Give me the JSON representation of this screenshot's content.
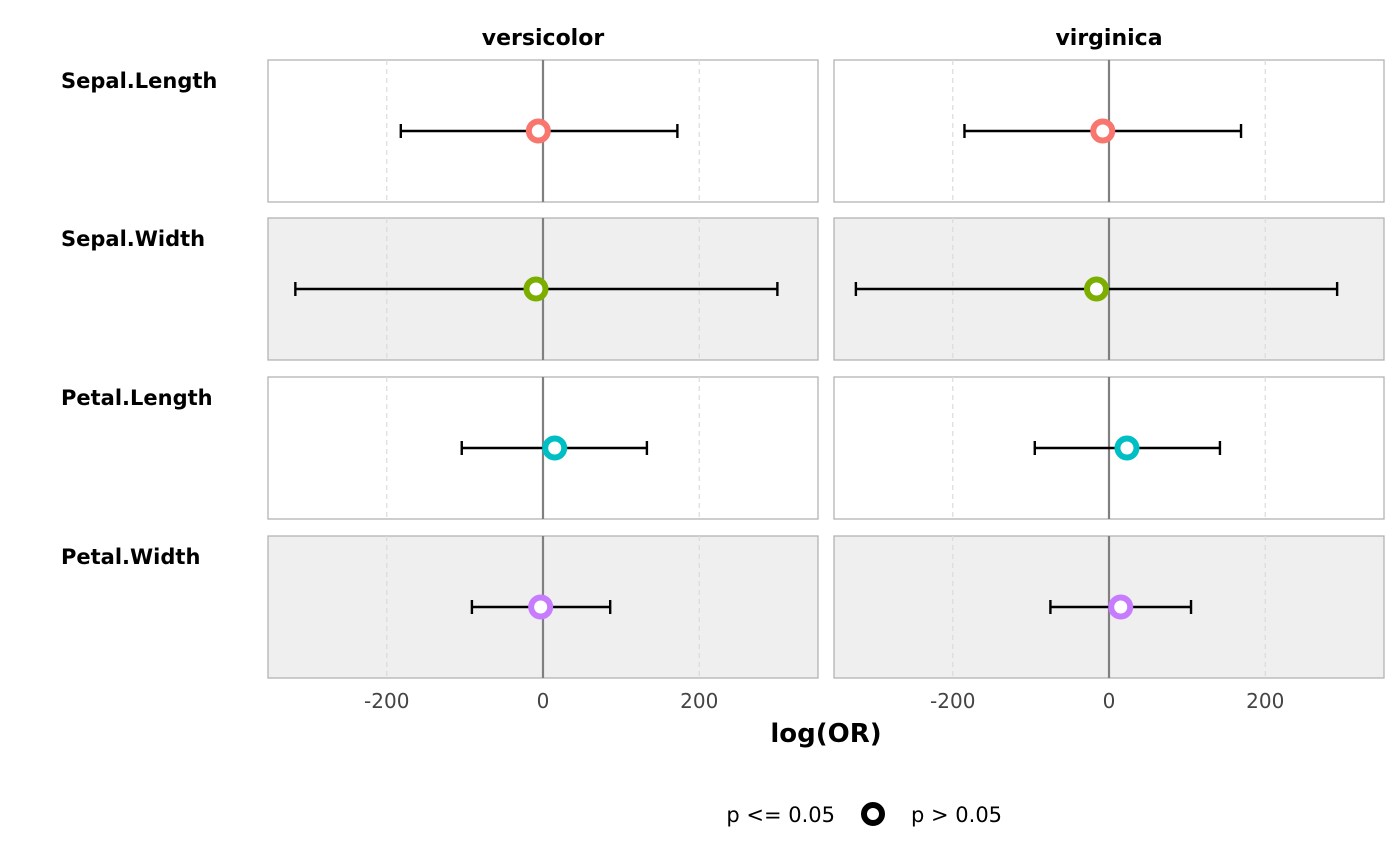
{
  "chart_data": {
    "type": "forest",
    "xlabel": "log(OR)",
    "xlim": [
      -352,
      352
    ],
    "xticks": [
      -200,
      0,
      200
    ],
    "xtick_labels": [
      "-200",
      "0",
      "200"
    ],
    "reference_line": 0,
    "grid": "vertical dashed",
    "legend_position": "bottom",
    "legend": [
      {
        "label": "p <= 0.05",
        "marker": "none"
      },
      {
        "label": "p > 0.05",
        "marker": "hollow-circle"
      }
    ],
    "facets": [
      "versicolor",
      "virginica"
    ],
    "rows": [
      {
        "label": "Sepal.Length",
        "color": "#F8766D",
        "background": "#ffffff"
      },
      {
        "label": "Sepal.Width",
        "color": "#7CAE00",
        "background": "#efefef"
      },
      {
        "label": "Petal.Length",
        "color": "#00BFC4",
        "background": "#ffffff"
      },
      {
        "label": "Petal.Width",
        "color": "#C77CFF",
        "background": "#efefef"
      }
    ],
    "estimates": {
      "versicolor": [
        {
          "term": "Sepal.Length",
          "estimate": -6,
          "low": -182,
          "high": 172,
          "p_gt_005": true
        },
        {
          "term": "Sepal.Width",
          "estimate": -9,
          "low": -317,
          "high": 300,
          "p_gt_005": true
        },
        {
          "term": "Petal.Length",
          "estimate": 15,
          "low": -104,
          "high": 133,
          "p_gt_005": true
        },
        {
          "term": "Petal.Width",
          "estimate": -3,
          "low": -91,
          "high": 86,
          "p_gt_005": true
        }
      ],
      "virginica": [
        {
          "term": "Sepal.Length",
          "estimate": -8,
          "low": -185,
          "high": 169,
          "p_gt_005": true
        },
        {
          "term": "Sepal.Width",
          "estimate": -16,
          "low": -324,
          "high": 292,
          "p_gt_005": true
        },
        {
          "term": "Petal.Length",
          "estimate": 23,
          "low": -95,
          "high": 142,
          "p_gt_005": true
        },
        {
          "term": "Petal.Width",
          "estimate": 15,
          "low": -75,
          "high": 105,
          "p_gt_005": true
        }
      ]
    }
  }
}
